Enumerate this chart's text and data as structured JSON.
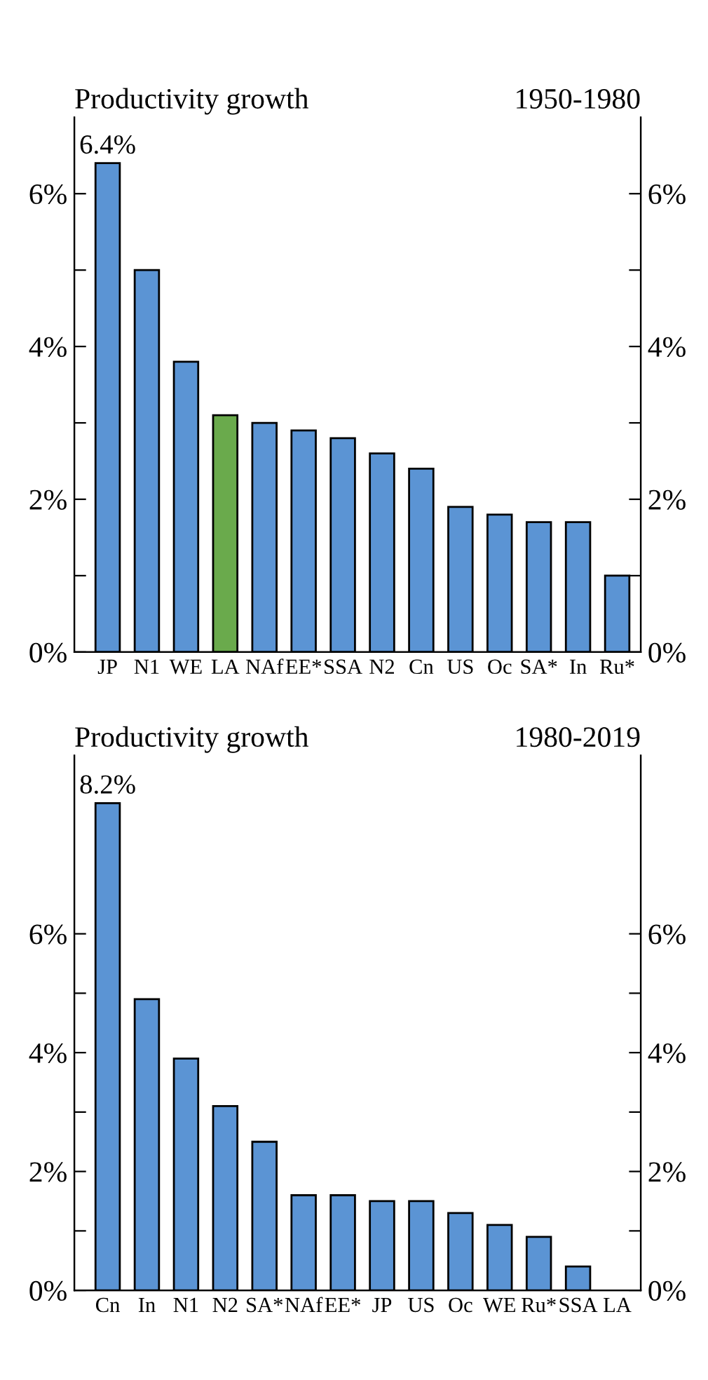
{
  "chart_data": [
    {
      "type": "bar",
      "title": "Productivity growth",
      "subtitle": "1950-1980",
      "categories": [
        "JP",
        "N1",
        "WE",
        "LA",
        "NAf",
        "EE*",
        "SSA",
        "N2",
        "Cn",
        "US",
        "Oc",
        "SA*",
        "In",
        "Ru*"
      ],
      "values": [
        6.4,
        5.0,
        3.8,
        3.1,
        3.0,
        2.9,
        2.8,
        2.6,
        2.4,
        1.9,
        1.8,
        1.7,
        1.7,
        1.0
      ],
      "value_labels": [
        "6.4%",
        null,
        null,
        null,
        null,
        null,
        null,
        null,
        null,
        null,
        null,
        null,
        null,
        null
      ],
      "colors": [
        "#5b94d4",
        "#5b94d4",
        "#5b94d4",
        "#6aaa4c",
        "#5b94d4",
        "#5b94d4",
        "#5b94d4",
        "#5b94d4",
        "#5b94d4",
        "#5b94d4",
        "#5b94d4",
        "#5b94d4",
        "#5b94d4",
        "#5b94d4"
      ],
      "ylim": [
        0,
        7
      ],
      "yticks": [
        {
          "value": 0,
          "label": "0%"
        },
        {
          "value": 1,
          "label": null
        },
        {
          "value": 2,
          "label": "2%"
        },
        {
          "value": 3,
          "label": null
        },
        {
          "value": 4,
          "label": "4%"
        },
        {
          "value": 5,
          "label": null
        },
        {
          "value": 6,
          "label": "6%"
        }
      ],
      "y2lim": [
        0,
        7
      ],
      "y2ticks": [
        {
          "value": 0,
          "label": "0%"
        },
        {
          "value": 1,
          "label": null
        },
        {
          "value": 2,
          "label": "2%"
        },
        {
          "value": 3,
          "label": null
        },
        {
          "value": 4,
          "label": "4%"
        },
        {
          "value": 5,
          "label": null
        },
        {
          "value": 6,
          "label": "6%"
        }
      ],
      "grid": false,
      "legend": false
    },
    {
      "type": "bar",
      "title": "Productivity growth",
      "subtitle": "1980-2019",
      "categories": [
        "Cn",
        "In",
        "N1",
        "N2",
        "SA*",
        "NAf",
        "EE*",
        "JP",
        "US",
        "Oc",
        "WE",
        "Ru*",
        "SSA",
        "LA"
      ],
      "values": [
        8.2,
        4.9,
        3.9,
        3.1,
        2.5,
        1.6,
        1.6,
        1.5,
        1.5,
        1.3,
        1.1,
        0.9,
        0.4,
        null
      ],
      "value_labels": [
        "8.2%",
        null,
        null,
        null,
        null,
        null,
        null,
        null,
        null,
        null,
        null,
        null,
        null,
        null
      ],
      "colors": [
        "#5b94d4",
        "#5b94d4",
        "#5b94d4",
        "#5b94d4",
        "#5b94d4",
        "#5b94d4",
        "#5b94d4",
        "#5b94d4",
        "#5b94d4",
        "#5b94d4",
        "#5b94d4",
        "#5b94d4",
        "#5b94d4",
        "#5b94d4"
      ],
      "ylim": [
        0,
        9
      ],
      "yticks": [
        {
          "value": 0,
          "label": "0%"
        },
        {
          "value": 1,
          "label": null
        },
        {
          "value": 2,
          "label": "2%"
        },
        {
          "value": 3,
          "label": null
        },
        {
          "value": 4,
          "label": "4%"
        },
        {
          "value": 5,
          "label": null
        },
        {
          "value": 6,
          "label": "6%"
        }
      ],
      "y2lim": [
        0,
        9
      ],
      "y2ticks": [
        {
          "value": 0,
          "label": "0%"
        },
        {
          "value": 1,
          "label": null
        },
        {
          "value": 2,
          "label": "2%"
        },
        {
          "value": 3,
          "label": null
        },
        {
          "value": 4,
          "label": "4%"
        },
        {
          "value": 5,
          "label": null
        },
        {
          "value": 6,
          "label": "6%"
        }
      ],
      "grid": false,
      "legend": false
    }
  ]
}
